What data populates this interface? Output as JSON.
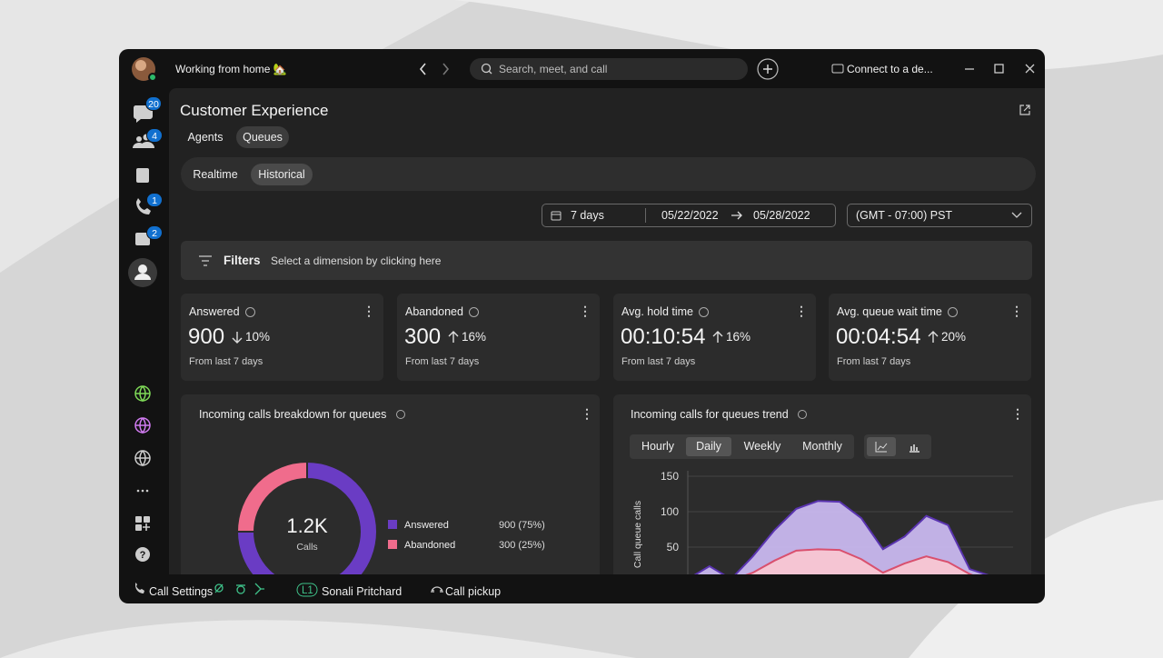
{
  "window": {
    "status": "Working from home 🏡",
    "search_placeholder": "Search, meet, and call",
    "connect": "Connect to a de..."
  },
  "sidebar": {
    "badges": [
      20,
      4,
      1,
      2
    ]
  },
  "page": {
    "title": "Customer Experience",
    "tabs": [
      "Agents",
      "Queues"
    ],
    "active_tab": 1,
    "views": [
      "Realtime",
      "Historical"
    ],
    "active_view": 1
  },
  "date_filter": {
    "range": "7 days",
    "start": "05/22/2022",
    "end": "05/28/2022",
    "timezone": "(GMT - 07:00) PST"
  },
  "filters": {
    "label": "Filters",
    "hint": "Select a dimension by clicking here"
  },
  "kpis": [
    {
      "label": "Answered",
      "value": "900",
      "change": "10%",
      "direction": "down",
      "note": "From last 7 days"
    },
    {
      "label": "Abandoned",
      "value": "300",
      "change": "16%",
      "direction": "up",
      "note": "From last 7 days"
    },
    {
      "label": "Avg. hold time",
      "value": "00:10:54",
      "change": "16%",
      "direction": "up",
      "note": "From last 7 days"
    },
    {
      "label": "Avg. queue wait time",
      "value": "00:04:54",
      "change": "20%",
      "direction": "up",
      "note": "From last 7 days"
    }
  ],
  "chart_data": [
    {
      "type": "pie",
      "title": "Incoming calls breakdown for queues",
      "center_value": "1.2K",
      "center_label": "Calls",
      "categories": [
        "Answered",
        "Abandoned"
      ],
      "values": [
        900,
        300
      ],
      "value_labels": [
        "900 (75%)",
        "300 (25%)"
      ],
      "colors": [
        "#6a3cc4",
        "#f06c8c"
      ]
    },
    {
      "type": "area",
      "title": "Incoming calls for queues trend",
      "granularities": [
        "Hourly",
        "Daily",
        "Weekly",
        "Monthly"
      ],
      "active_granularity": 1,
      "y_label": "Call queue calls",
      "x": [
        null,
        null,
        null,
        null,
        null,
        null,
        null,
        null,
        null,
        null,
        null,
        null,
        null,
        null,
        null,
        null
      ],
      "series": [
        {
          "color": "#5a34b0",
          "fill": "#c9b8ef",
          "values": [
            5,
            23,
            5,
            37,
            74,
            104,
            115,
            114,
            91,
            47,
            65,
            94,
            81,
            19,
            9,
            0
          ]
        },
        {
          "color": "#d9506e",
          "fill": "#f8c6d2",
          "values": [
            3,
            10,
            3,
            14,
            31,
            45,
            47,
            46,
            33,
            14,
            27,
            37,
            29,
            12,
            0,
            0
          ]
        }
      ],
      "ylim": [
        0,
        150
      ],
      "yticks": [
        50,
        100,
        150
      ],
      "grid": true
    }
  ],
  "bottom_bar": {
    "call_settings": "Call Settings",
    "line": "L1",
    "user": "Sonali Pritchard",
    "pickup": "Call pickup"
  }
}
